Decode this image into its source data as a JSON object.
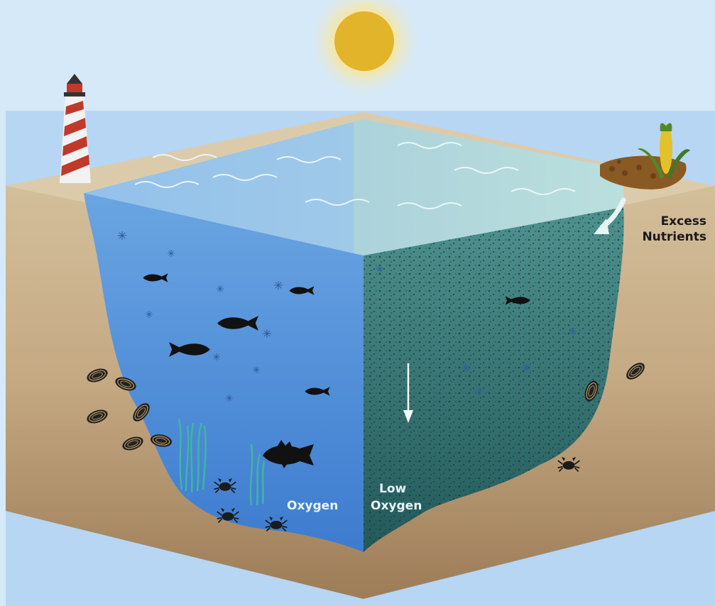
{
  "labels": {
    "excess_nutrients_line1": "Excess",
    "excess_nutrients_line2": "Nutrients",
    "oxygen": "Oxygen",
    "low_oxygen_line1": "Low",
    "low_oxygen_line2": "Oxygen"
  },
  "colors": {
    "sky": "#d6e9f8",
    "sun": "#e2b42a",
    "sand": "#cbb48d",
    "healthy_water": "#4f8fd6",
    "hypoxic_water": "#2f6f6c",
    "label_light": "#eaf3fb",
    "label_dark": "#1a1a1a"
  },
  "icons": [
    "sun-icon",
    "lighthouse-icon",
    "corn-field-icon",
    "fish-icon",
    "mussel-icon",
    "crab-icon",
    "seagrass-icon",
    "plankton-icon",
    "nutrient-flow-arrow-icon",
    "sinking-arrow-icon"
  ]
}
